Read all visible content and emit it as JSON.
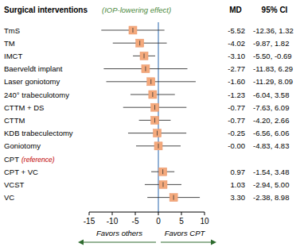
{
  "chart_data": {
    "type": "forest",
    "title": "Surgical interventions",
    "subtitle": "(IOP-lowering effect)",
    "columns": [
      "MD",
      "95% CI"
    ],
    "categories": [
      "TmS",
      "TM",
      "IMCT",
      "Baerveldt implant",
      "Laser goniotomy",
      "240° trabeculotomy",
      "CTTM + DS",
      "CTTM",
      "KDB trabeculectomy",
      "Goniotomy",
      "CPT",
      "CPT + VC",
      "VCST",
      "VC"
    ],
    "reference_label": "(reference)",
    "values": [
      -5.52,
      -4.02,
      -3.1,
      -2.77,
      -1.6,
      -1.23,
      -0.77,
      -0.77,
      -0.25,
      0.0,
      null,
      0.97,
      1.03,
      3.3
    ],
    "value_labels": [
      "-5.52",
      "-4.02",
      "-3.10",
      "-2.77",
      "-1.60",
      "-1.23",
      "-0.77",
      "-0.77",
      "-0.25",
      "-0.00",
      null,
      "0.97",
      "1.03",
      "3.30"
    ],
    "ci_lower": [
      -12.36,
      -9.87,
      -5.5,
      -11.83,
      -11.29,
      -6.04,
      -7.63,
      -4.2,
      -6.56,
      -4.83,
      null,
      -1.54,
      -2.94,
      -2.38
    ],
    "ci_upper": [
      1.32,
      1.82,
      -0.69,
      6.29,
      8.09,
      3.58,
      6.09,
      2.66,
      6.06,
      4.83,
      null,
      3.48,
      5.0,
      8.98
    ],
    "ci_labels": [
      "-12.36, 1.32",
      "-9.87, 1.82",
      "-5.50, -0.69",
      "-11.83, 6.29",
      "-11.29, 8.09",
      "-6.04, 3.58",
      "-7.63, 6.09",
      "-4.20, 2.66",
      "-6.56, 6.06",
      "-4.83, 4.83",
      null,
      "-1.54, 3.48",
      "-2.94, 5.00",
      "-2.38, 8.98"
    ],
    "reference_line": 0,
    "xlim": [
      -15,
      10
    ],
    "xticks": [
      -15,
      -10,
      -5,
      0,
      5,
      10
    ],
    "color": "#f4a97c",
    "annotations": [
      "Favors others",
      "Favors CPT"
    ]
  }
}
